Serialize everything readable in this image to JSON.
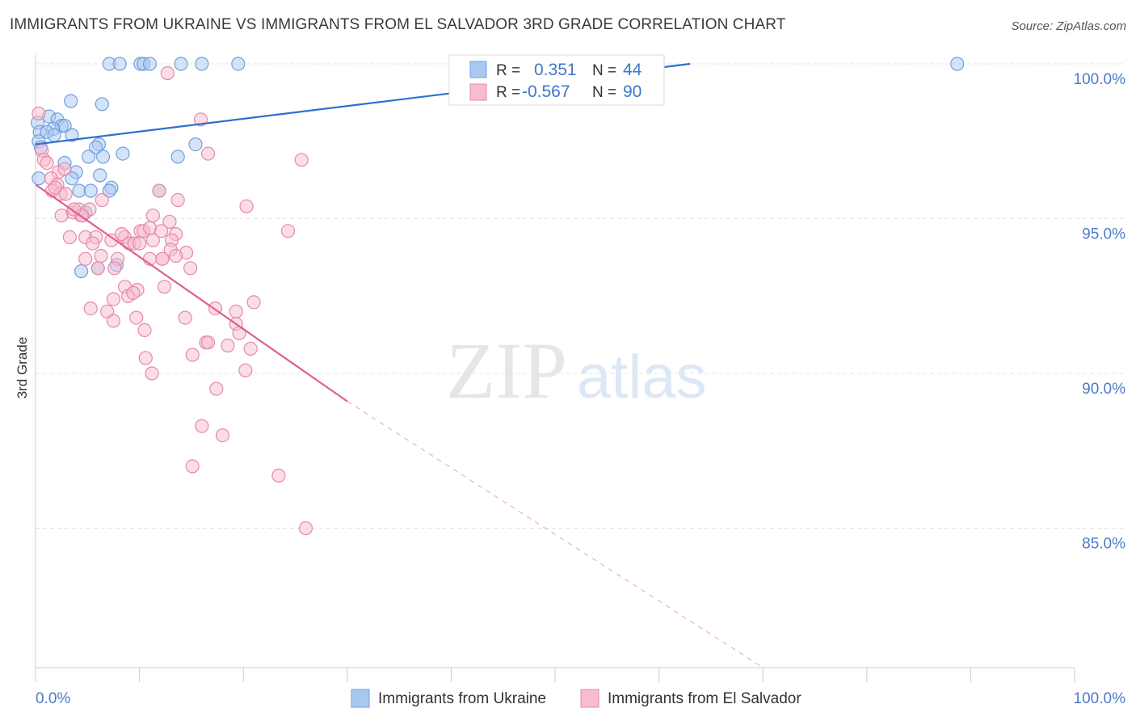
{
  "title": "IMMIGRANTS FROM UKRAINE VS IMMIGRANTS FROM EL SALVADOR 3RD GRADE CORRELATION CHART",
  "source": "Source: ZipAtlas.com",
  "watermark": {
    "zip": "ZIP",
    "atlas": "atlas"
  },
  "colors": {
    "ukraine": "#6f9fe0",
    "ukraine_fill": "#a9c8f0",
    "ukraine_line": "#2f6fd0",
    "elsalvador": "#e888aa",
    "elsalvador_fill": "#f6bcd0",
    "elsalvador_line": "#e0608c",
    "tick": "#4a7cc7",
    "grid": "#e4e4e4"
  },
  "chart_data": {
    "type": "scatter",
    "xlabel": "",
    "ylabel": "3rd Grade",
    "xlim": [
      0,
      100
    ],
    "ylim": [
      80.5,
      100.4
    ],
    "x_tick_labels": [
      {
        "value": 0,
        "label": "0.0%"
      },
      {
        "value": 100,
        "label": "100.0%"
      }
    ],
    "y_ticks": [
      {
        "value": 100,
        "label": "100.0%"
      },
      {
        "value": 95,
        "label": "95.0%"
      },
      {
        "value": 90,
        "label": "90.0%"
      },
      {
        "value": 85,
        "label": "85.0%"
      }
    ],
    "legend": [
      {
        "key": "ukraine",
        "label": "Immigrants from Ukraine"
      },
      {
        "key": "elsalvador",
        "label": "Immigrants from El Salvador"
      }
    ],
    "stats": [
      {
        "key": "ukraine",
        "r_label": "R =",
        "r": "0.351",
        "n_label": "N =",
        "n": "44"
      },
      {
        "key": "elsalvador",
        "r_label": "R =",
        "r": "-0.567",
        "n_label": "N =",
        "n": "90"
      }
    ],
    "series": [
      {
        "name": "Immigrants from Ukraine",
        "key": "ukraine",
        "trend": {
          "x0": 0,
          "y0": 97.4,
          "x1": 63,
          "y1": 100.0
        },
        "points": [
          [
            7.1,
            100
          ],
          [
            8.1,
            100
          ],
          [
            10.1,
            100
          ],
          [
            10.4,
            100
          ],
          [
            11.0,
            100
          ],
          [
            14.0,
            100
          ],
          [
            16.0,
            100
          ],
          [
            19.5,
            100
          ],
          [
            88.7,
            100
          ],
          [
            3.4,
            98.8
          ],
          [
            6.4,
            98.7
          ],
          [
            1.3,
            98.3
          ],
          [
            2.1,
            98.2
          ],
          [
            0.2,
            98.1
          ],
          [
            2.5,
            98.0
          ],
          [
            2.8,
            98.0
          ],
          [
            1.7,
            97.9
          ],
          [
            0.4,
            97.8
          ],
          [
            1.1,
            97.8
          ],
          [
            3.5,
            97.7
          ],
          [
            1.8,
            97.7
          ],
          [
            0.3,
            97.5
          ],
          [
            0.5,
            97.3
          ],
          [
            6.1,
            97.4
          ],
          [
            15.4,
            97.4
          ],
          [
            5.8,
            97.3
          ],
          [
            8.4,
            97.1
          ],
          [
            5.1,
            97.0
          ],
          [
            6.5,
            97.0
          ],
          [
            13.7,
            97.0
          ],
          [
            2.8,
            96.8
          ],
          [
            3.9,
            96.5
          ],
          [
            6.2,
            96.4
          ],
          [
            0.3,
            96.3
          ],
          [
            3.5,
            96.3
          ],
          [
            7.3,
            96.0
          ],
          [
            4.2,
            95.9
          ],
          [
            5.3,
            95.9
          ],
          [
            7.1,
            95.9
          ],
          [
            11.9,
            95.9
          ],
          [
            4.8,
            95.2
          ],
          [
            6.0,
            93.4
          ],
          [
            7.8,
            93.5
          ],
          [
            4.4,
            93.3
          ]
        ]
      },
      {
        "name": "Immigrants from El Salvador",
        "key": "elsalvador",
        "trend": {
          "x0": 0,
          "y0": 96.1,
          "x1": 30,
          "y1": 89.1,
          "dash_x1": 70,
          "dash_y1": 80.5
        },
        "points": [
          [
            0.3,
            98.4
          ],
          [
            12.7,
            99.7
          ],
          [
            15.9,
            98.2
          ],
          [
            16.6,
            97.1
          ],
          [
            25.6,
            96.9
          ],
          [
            0.6,
            97.2
          ],
          [
            0.8,
            96.9
          ],
          [
            1.1,
            96.8
          ],
          [
            2.2,
            96.5
          ],
          [
            2.8,
            96.6
          ],
          [
            1.5,
            96.3
          ],
          [
            2.1,
            96.1
          ],
          [
            1.6,
            95.9
          ],
          [
            2.4,
            95.8
          ],
          [
            11.9,
            95.9
          ],
          [
            13.7,
            95.6
          ],
          [
            6.4,
            95.6
          ],
          [
            2.5,
            95.1
          ],
          [
            3.6,
            95.2
          ],
          [
            4.2,
            95.3
          ],
          [
            5.2,
            95.3
          ],
          [
            4.4,
            95.1
          ],
          [
            20.3,
            95.4
          ],
          [
            11.3,
            95.1
          ],
          [
            12.9,
            94.9
          ],
          [
            10.1,
            94.6
          ],
          [
            10.4,
            94.6
          ],
          [
            11.0,
            94.7
          ],
          [
            12.1,
            94.6
          ],
          [
            13.5,
            94.5
          ],
          [
            24.3,
            94.6
          ],
          [
            3.3,
            94.4
          ],
          [
            4.8,
            94.4
          ],
          [
            5.8,
            94.4
          ],
          [
            7.3,
            94.3
          ],
          [
            8.6,
            94.4
          ],
          [
            9.0,
            94.2
          ],
          [
            11.3,
            94.3
          ],
          [
            13.1,
            94.3
          ],
          [
            5.5,
            94.2
          ],
          [
            9.5,
            94.2
          ],
          [
            13.0,
            94.0
          ],
          [
            14.5,
            93.9
          ],
          [
            6.3,
            93.8
          ],
          [
            11.0,
            93.7
          ],
          [
            12.2,
            93.7
          ],
          [
            13.5,
            93.8
          ],
          [
            4.8,
            93.7
          ],
          [
            7.9,
            93.7
          ],
          [
            6.0,
            93.4
          ],
          [
            7.6,
            93.4
          ],
          [
            14.9,
            93.4
          ],
          [
            8.6,
            92.8
          ],
          [
            12.4,
            92.8
          ],
          [
            9.8,
            92.7
          ],
          [
            8.9,
            92.5
          ],
          [
            7.5,
            92.4
          ],
          [
            21.0,
            92.3
          ],
          [
            6.9,
            92.0
          ],
          [
            17.3,
            92.1
          ],
          [
            19.3,
            92.0
          ],
          [
            7.5,
            91.7
          ],
          [
            9.7,
            91.8
          ],
          [
            14.4,
            91.8
          ],
          [
            19.3,
            91.6
          ],
          [
            10.5,
            91.4
          ],
          [
            19.6,
            91.3
          ],
          [
            16.4,
            91.0
          ],
          [
            16.6,
            91.0
          ],
          [
            18.5,
            90.9
          ],
          [
            20.7,
            90.8
          ],
          [
            15.1,
            90.6
          ],
          [
            10.6,
            90.5
          ],
          [
            20.2,
            90.1
          ],
          [
            11.2,
            90.0
          ],
          [
            17.4,
            89.5
          ],
          [
            16.0,
            88.3
          ],
          [
            18.0,
            88.0
          ],
          [
            15.1,
            87.0
          ],
          [
            23.4,
            86.7
          ],
          [
            26.0,
            85.0
          ],
          [
            1.9,
            96.0
          ],
          [
            2.9,
            95.8
          ],
          [
            4.5,
            95.1
          ],
          [
            8.3,
            94.5
          ],
          [
            10.0,
            94.2
          ],
          [
            12.2,
            93.7
          ],
          [
            5.3,
            92.1
          ],
          [
            9.4,
            92.6
          ],
          [
            3.7,
            95.3
          ]
        ]
      }
    ]
  }
}
